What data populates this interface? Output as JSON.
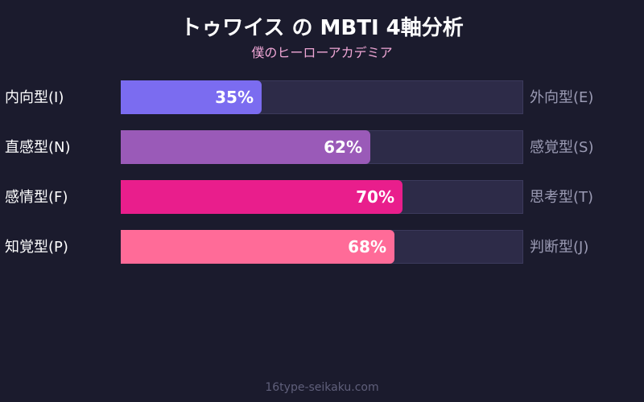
{
  "chart_data": {
    "type": "bar",
    "title": "トゥワイス の MBTI 4軸分析",
    "subtitle": "僕のヒーローアカデミア",
    "xlim": [
      0,
      100
    ],
    "series": [
      {
        "left_label": "内向型(I)",
        "right_label": "外向型(E)",
        "value": 35,
        "value_label": "35%",
        "color": "#7b6cf0"
      },
      {
        "left_label": "直感型(N)",
        "right_label": "感覚型(S)",
        "value": 62,
        "value_label": "62%",
        "color": "#9a5ab8"
      },
      {
        "left_label": "感情型(F)",
        "right_label": "思考型(T)",
        "value": 70,
        "value_label": "70%",
        "color": "#e91e8c"
      },
      {
        "left_label": "知覚型(P)",
        "right_label": "判断型(J)",
        "value": 68,
        "value_label": "68%",
        "color": "#ff6b98"
      }
    ]
  },
  "footer": "16type-seikaku.com"
}
